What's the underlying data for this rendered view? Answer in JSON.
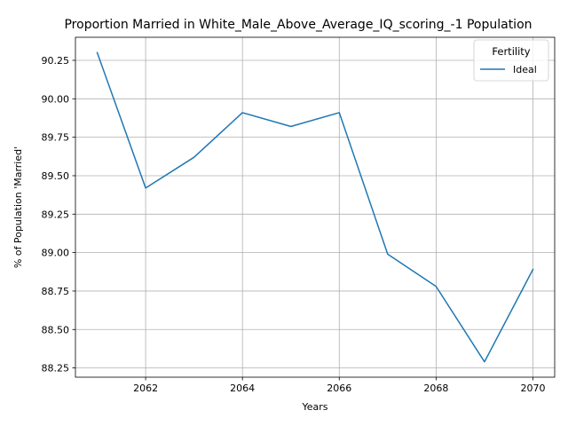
{
  "chart_data": {
    "type": "line",
    "title": "Proportion Married in White_Male_Above_Average_IQ_scoring_-1 Population",
    "xlabel": "Years",
    "ylabel": "% of Population 'Married'",
    "x": [
      2061,
      2062,
      2063,
      2064,
      2065,
      2066,
      2067,
      2068,
      2069,
      2070
    ],
    "series": [
      {
        "name": "Ideal",
        "color": "#1f77b4",
        "values": [
          90.3,
          89.42,
          89.62,
          89.91,
          89.82,
          89.91,
          88.99,
          88.78,
          88.29,
          88.89
        ]
      }
    ],
    "xlim": [
      2060.55,
      2070.45
    ],
    "ylim": [
      88.19,
      90.4
    ],
    "xticks": [
      2062,
      2064,
      2066,
      2068,
      2070
    ],
    "yticks": [
      88.25,
      88.5,
      88.75,
      89.0,
      89.25,
      89.5,
      89.75,
      90.0,
      90.25
    ],
    "ytick_labels": [
      "88.25",
      "88.50",
      "88.75",
      "89.00",
      "89.25",
      "89.50",
      "89.75",
      "90.00",
      "90.25"
    ],
    "grid": true,
    "legend": {
      "title": "Fertility",
      "placement": "top-right"
    }
  }
}
